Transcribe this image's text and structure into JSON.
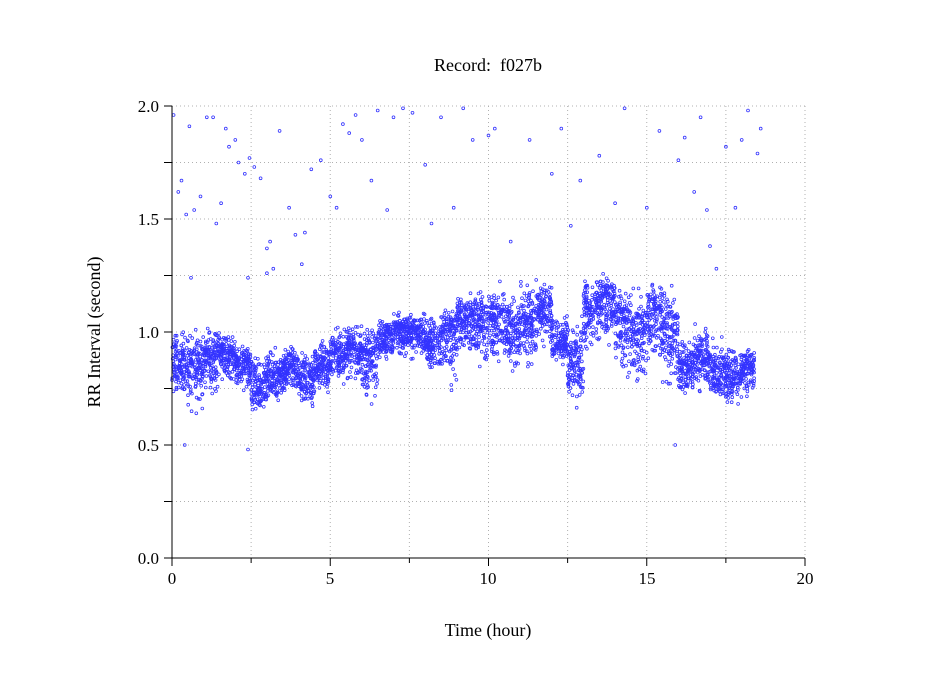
{
  "chart_data": {
    "type": "scatter",
    "title": "Record:  f027b",
    "xlabel": "Time (hour)",
    "ylabel": "RR Interval (second)",
    "xlim": [
      0,
      20
    ],
    "ylim": [
      0.0,
      2.0
    ],
    "xticks": [
      "0",
      "5",
      "10",
      "15",
      "20"
    ],
    "yticks": [
      "0.0",
      "0.5",
      "1.0",
      "1.5",
      "2.0"
    ],
    "grid": true,
    "marker": "hollow circle",
    "color": "#3333ff",
    "band_description": "dense RR intervals per half-hour: [start hour, end hour, typical, low, high] in seconds",
    "bands": [
      [
        0.0,
        0.5,
        0.85,
        0.7,
        1.05
      ],
      [
        0.5,
        1.0,
        0.85,
        0.6,
        1.05
      ],
      [
        1.0,
        1.5,
        0.9,
        0.7,
        1.05
      ],
      [
        1.5,
        2.0,
        0.9,
        0.75,
        1.0
      ],
      [
        2.0,
        2.5,
        0.85,
        0.7,
        0.95
      ],
      [
        2.5,
        3.0,
        0.75,
        0.6,
        0.95
      ],
      [
        3.0,
        3.5,
        0.8,
        0.65,
        0.95
      ],
      [
        3.5,
        4.0,
        0.85,
        0.7,
        0.95
      ],
      [
        4.0,
        4.5,
        0.8,
        0.62,
        0.95
      ],
      [
        4.5,
        5.0,
        0.85,
        0.7,
        1.0
      ],
      [
        5.0,
        5.5,
        0.9,
        0.75,
        1.05
      ],
      [
        5.5,
        6.0,
        0.92,
        0.75,
        1.05
      ],
      [
        6.0,
        6.5,
        0.9,
        0.65,
        1.05
      ],
      [
        6.5,
        7.0,
        0.98,
        0.85,
        1.08
      ],
      [
        7.0,
        7.5,
        1.0,
        0.85,
        1.1
      ],
      [
        7.5,
        8.0,
        1.0,
        0.85,
        1.1
      ],
      [
        8.0,
        8.5,
        0.95,
        0.8,
        1.1
      ],
      [
        8.5,
        9.0,
        1.0,
        0.7,
        1.15
      ],
      [
        9.0,
        9.5,
        1.05,
        0.85,
        1.2
      ],
      [
        9.5,
        10.0,
        1.05,
        0.8,
        1.2
      ],
      [
        10.0,
        10.5,
        1.05,
        0.8,
        1.25
      ],
      [
        10.5,
        11.0,
        1.0,
        0.8,
        1.2
      ],
      [
        11.0,
        11.5,
        1.05,
        0.8,
        1.25
      ],
      [
        11.5,
        12.0,
        1.1,
        0.9,
        1.25
      ],
      [
        12.0,
        12.5,
        0.95,
        0.85,
        1.1
      ],
      [
        12.5,
        13.0,
        0.85,
        0.65,
        1.1
      ],
      [
        13.0,
        13.5,
        1.1,
        0.85,
        1.25
      ],
      [
        13.5,
        14.0,
        1.15,
        0.9,
        1.3
      ],
      [
        14.0,
        14.5,
        1.05,
        0.7,
        1.25
      ],
      [
        14.5,
        15.0,
        1.0,
        0.7,
        1.2
      ],
      [
        15.0,
        15.5,
        1.1,
        0.8,
        1.25
      ],
      [
        15.5,
        16.0,
        1.0,
        0.7,
        1.25
      ],
      [
        16.0,
        16.5,
        0.85,
        0.7,
        1.0
      ],
      [
        16.5,
        17.0,
        0.9,
        0.7,
        1.05
      ],
      [
        17.0,
        17.5,
        0.8,
        0.65,
        1.0
      ],
      [
        17.5,
        18.0,
        0.8,
        0.65,
        0.95
      ],
      [
        18.0,
        18.4,
        0.85,
        0.7,
        0.95
      ]
    ],
    "outliers": [
      [
        0.05,
        1.96
      ],
      [
        0.2,
        1.62
      ],
      [
        0.3,
        1.67
      ],
      [
        0.45,
        1.52
      ],
      [
        0.55,
        1.91
      ],
      [
        0.7,
        1.54
      ],
      [
        0.9,
        1.6
      ],
      [
        1.1,
        1.95
      ],
      [
        1.3,
        1.95
      ],
      [
        1.4,
        1.48
      ],
      [
        1.55,
        1.57
      ],
      [
        1.7,
        1.9
      ],
      [
        1.8,
        1.82
      ],
      [
        2.0,
        1.85
      ],
      [
        2.1,
        1.75
      ],
      [
        2.3,
        1.7
      ],
      [
        2.45,
        1.77
      ],
      [
        2.6,
        1.73
      ],
      [
        2.8,
        1.68
      ],
      [
        3.0,
        1.37
      ],
      [
        3.1,
        1.4
      ],
      [
        3.2,
        1.28
      ],
      [
        3.4,
        1.89
      ],
      [
        3.7,
        1.55
      ],
      [
        3.9,
        1.43
      ],
      [
        4.1,
        1.3
      ],
      [
        4.2,
        1.44
      ],
      [
        4.4,
        1.72
      ],
      [
        4.7,
        1.76
      ],
      [
        5.0,
        1.6
      ],
      [
        5.2,
        1.55
      ],
      [
        5.4,
        1.92
      ],
      [
        5.6,
        1.88
      ],
      [
        5.8,
        1.96
      ],
      [
        6.0,
        1.85
      ],
      [
        6.3,
        1.67
      ],
      [
        6.5,
        1.98
      ],
      [
        6.8,
        1.54
      ],
      [
        7.0,
        1.95
      ],
      [
        7.3,
        1.99
      ],
      [
        7.6,
        1.97
      ],
      [
        8.0,
        1.74
      ],
      [
        8.2,
        1.48
      ],
      [
        8.5,
        1.95
      ],
      [
        8.9,
        1.55
      ],
      [
        9.2,
        1.99
      ],
      [
        9.5,
        1.85
      ],
      [
        10.0,
        1.87
      ],
      [
        10.2,
        1.9
      ],
      [
        10.7,
        1.4
      ],
      [
        11.3,
        1.85
      ],
      [
        12.0,
        1.7
      ],
      [
        12.3,
        1.9
      ],
      [
        12.6,
        1.47
      ],
      [
        12.9,
        1.67
      ],
      [
        13.5,
        1.78
      ],
      [
        14.0,
        1.57
      ],
      [
        14.3,
        1.99
      ],
      [
        15.0,
        1.55
      ],
      [
        15.4,
        1.89
      ],
      [
        16.0,
        1.76
      ],
      [
        16.2,
        1.86
      ],
      [
        16.5,
        1.62
      ],
      [
        16.7,
        1.95
      ],
      [
        16.9,
        1.54
      ],
      [
        17.0,
        1.38
      ],
      [
        17.2,
        1.28
      ],
      [
        17.5,
        1.82
      ],
      [
        17.8,
        1.55
      ],
      [
        18.0,
        1.85
      ],
      [
        18.2,
        1.98
      ],
      [
        18.5,
        1.79
      ],
      [
        18.6,
        1.9
      ],
      [
        0.4,
        0.5
      ],
      [
        2.4,
        0.48
      ],
      [
        15.9,
        0.5
      ],
      [
        0.6,
        1.24
      ],
      [
        2.4,
        1.24
      ],
      [
        3.0,
        1.26
      ]
    ]
  }
}
